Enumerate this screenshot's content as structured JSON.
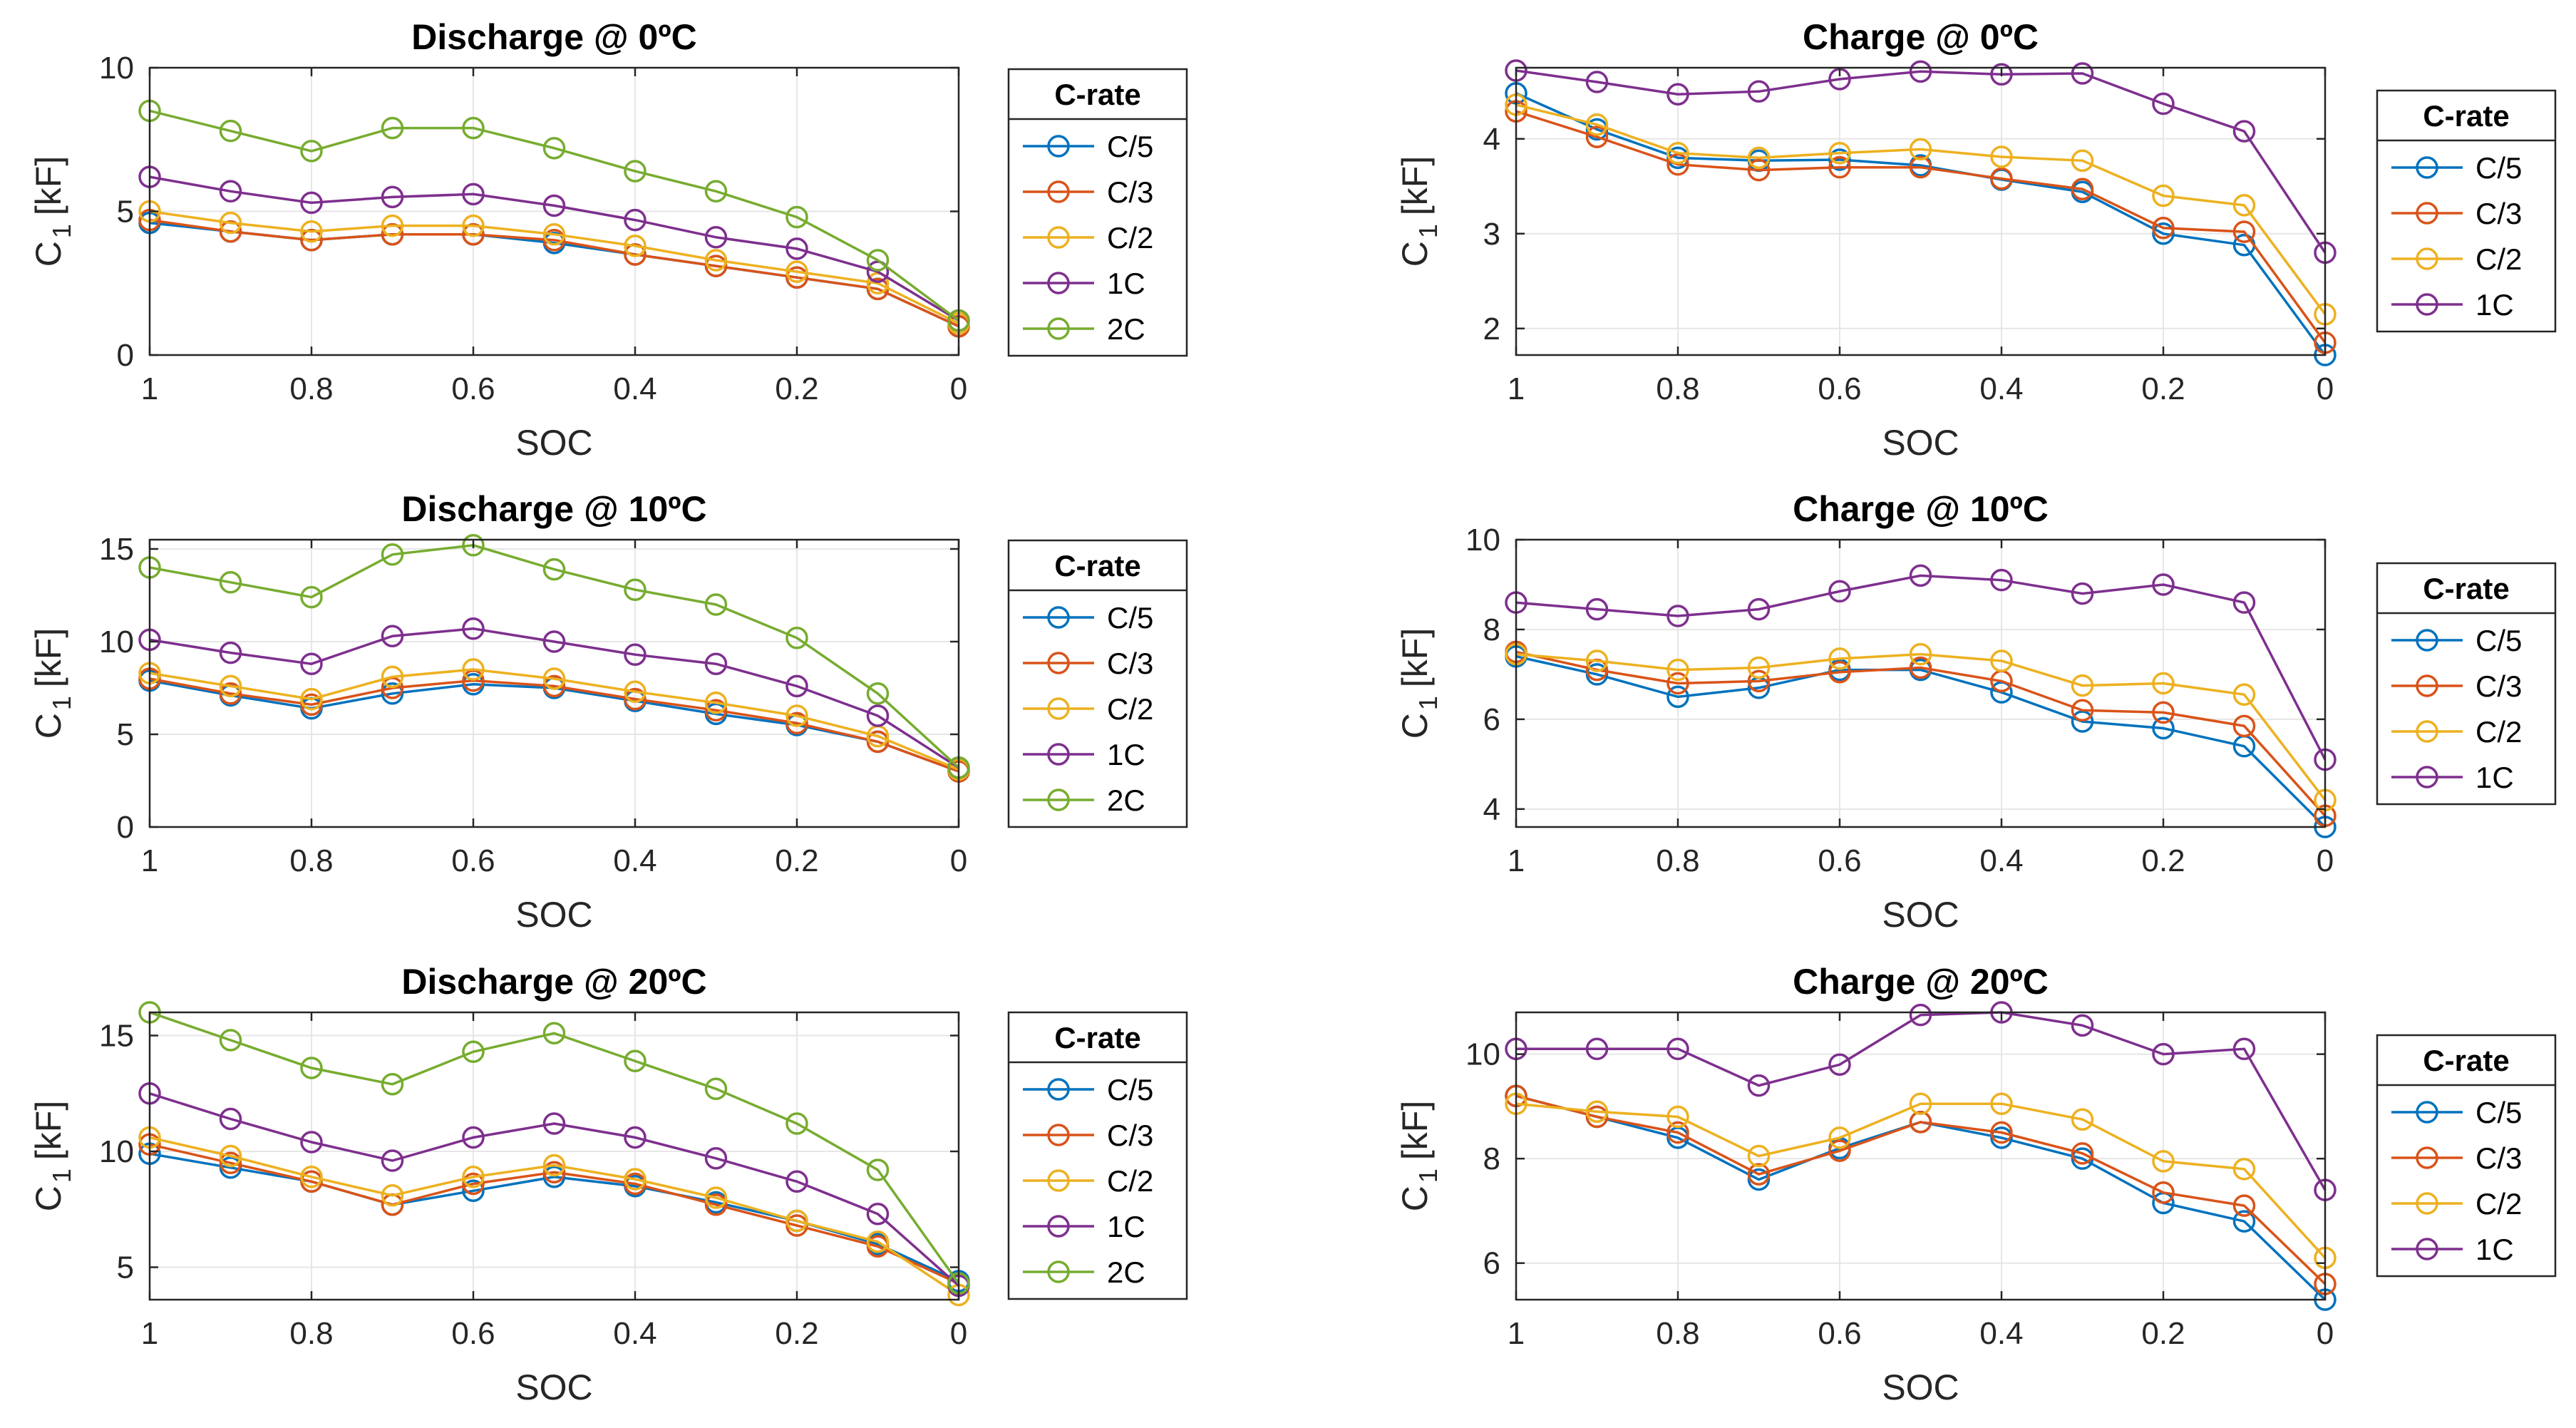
{
  "colors": {
    "C/5": "#0072BD",
    "C/3": "#D95319",
    "C/2": "#EDB120",
    "1C": "#7E2F8E",
    "2C": "#77AC30"
  },
  "chart_data": [
    {
      "type": "line",
      "title": "Discharge @ 0ºC",
      "xlabel": "SOC",
      "ylabel": "C 1 [kF]",
      "ylabel_main": "C",
      "ylabel_sub": "1",
      "ylabel_unit": "[kF]",
      "x": [
        1,
        0.9,
        0.8,
        0.7,
        0.6,
        0.5,
        0.4,
        0.3,
        0.2,
        0.1,
        0
      ],
      "xlim": [
        0,
        1
      ],
      "ylim": [
        0,
        10
      ],
      "xticks": [
        1,
        0.8,
        0.6,
        0.4,
        0.2,
        0
      ],
      "xtick_labels": [
        "1",
        "0.8",
        "0.6",
        "0.4",
        "0.2",
        "0"
      ],
      "yticks": [
        0,
        5,
        10
      ],
      "ytick_labels": [
        "0",
        "5",
        "10"
      ],
      "legend_title": "C-rate",
      "series": [
        {
          "name": "C/5",
          "values": [
            4.6,
            4.3,
            4.0,
            4.2,
            4.2,
            3.9,
            3.5,
            3.1,
            2.7,
            2.3,
            1.0
          ]
        },
        {
          "name": "C/3",
          "values": [
            4.7,
            4.3,
            4.0,
            4.2,
            4.2,
            4.0,
            3.5,
            3.1,
            2.7,
            2.3,
            1.0
          ]
        },
        {
          "name": "C/2",
          "values": [
            5.0,
            4.6,
            4.3,
            4.5,
            4.5,
            4.2,
            3.8,
            3.3,
            2.9,
            2.5,
            1.1
          ]
        },
        {
          "name": "1C",
          "values": [
            6.2,
            5.7,
            5.3,
            5.5,
            5.6,
            5.2,
            4.7,
            4.1,
            3.7,
            2.9,
            1.2
          ]
        },
        {
          "name": "2C",
          "values": [
            8.5,
            7.8,
            7.1,
            7.9,
            7.9,
            7.2,
            6.4,
            5.7,
            4.8,
            3.3,
            1.2
          ]
        }
      ]
    },
    {
      "type": "line",
      "title": "Charge @ 0ºC",
      "xlabel": "SOC",
      "ylabel": "C 1 [kF]",
      "ylabel_main": "C",
      "ylabel_sub": "1",
      "ylabel_unit": "[kF]",
      "x": [
        1,
        0.9,
        0.8,
        0.7,
        0.6,
        0.5,
        0.4,
        0.3,
        0.2,
        0.1,
        0
      ],
      "xlim": [
        0,
        1
      ],
      "ylim": [
        1.72,
        4.75
      ],
      "xticks": [
        1,
        0.8,
        0.6,
        0.4,
        0.2,
        0
      ],
      "xtick_labels": [
        "1",
        "0.8",
        "0.6",
        "0.4",
        "0.2",
        "0"
      ],
      "yticks": [
        2,
        3,
        4
      ],
      "ytick_labels": [
        "2",
        "3",
        "4"
      ],
      "legend_title": "C-rate",
      "series": [
        {
          "name": "C/5",
          "values": [
            4.48,
            4.1,
            3.8,
            3.77,
            3.78,
            3.72,
            3.57,
            3.44,
            3.0,
            2.88,
            1.72
          ]
        },
        {
          "name": "C/3",
          "values": [
            4.29,
            4.02,
            3.73,
            3.67,
            3.7,
            3.7,
            3.58,
            3.47,
            3.06,
            3.02,
            1.85
          ]
        },
        {
          "name": "C/2",
          "values": [
            4.36,
            4.15,
            3.85,
            3.8,
            3.85,
            3.89,
            3.81,
            3.77,
            3.4,
            3.3,
            2.15
          ]
        },
        {
          "name": "1C",
          "values": [
            4.72,
            4.6,
            4.47,
            4.5,
            4.63,
            4.71,
            4.68,
            4.69,
            4.37,
            4.08,
            2.8
          ]
        }
      ]
    },
    {
      "type": "line",
      "title": "Discharge @ 10ºC",
      "xlabel": "SOC",
      "ylabel": "C 1 [kF]",
      "ylabel_main": "C",
      "ylabel_sub": "1",
      "ylabel_unit": "[kF]",
      "x": [
        1,
        0.9,
        0.8,
        0.7,
        0.6,
        0.5,
        0.4,
        0.3,
        0.2,
        0.1,
        0
      ],
      "xlim": [
        0,
        1
      ],
      "ylim": [
        0,
        15.5
      ],
      "xticks": [
        1,
        0.8,
        0.6,
        0.4,
        0.2,
        0
      ],
      "xtick_labels": [
        "1",
        "0.8",
        "0.6",
        "0.4",
        "0.2",
        "0"
      ],
      "yticks": [
        0,
        5,
        10,
        15
      ],
      "ytick_labels": [
        "0",
        "5",
        "10",
        "15"
      ],
      "legend_title": "C-rate",
      "series": [
        {
          "name": "C/5",
          "values": [
            7.9,
            7.1,
            6.4,
            7.2,
            7.7,
            7.5,
            6.8,
            6.1,
            5.5,
            4.6,
            3.0
          ]
        },
        {
          "name": "C/3",
          "values": [
            8.0,
            7.2,
            6.6,
            7.5,
            7.9,
            7.6,
            6.9,
            6.3,
            5.6,
            4.6,
            3.0
          ]
        },
        {
          "name": "C/2",
          "values": [
            8.3,
            7.6,
            6.9,
            8.1,
            8.5,
            8.0,
            7.3,
            6.7,
            6.0,
            4.9,
            3.1
          ]
        },
        {
          "name": "1C",
          "values": [
            10.1,
            9.4,
            8.8,
            10.3,
            10.7,
            10.0,
            9.3,
            8.8,
            7.6,
            6.0,
            3.2
          ]
        },
        {
          "name": "2C",
          "values": [
            14.0,
            13.2,
            12.4,
            14.7,
            15.2,
            13.9,
            12.8,
            12.0,
            10.2,
            7.2,
            3.2
          ]
        }
      ]
    },
    {
      "type": "line",
      "title": "Charge @ 10ºC",
      "xlabel": "SOC",
      "ylabel": "C 1 [kF]",
      "ylabel_main": "C",
      "ylabel_sub": "1",
      "ylabel_unit": "[kF]",
      "x": [
        1,
        0.9,
        0.8,
        0.7,
        0.6,
        0.5,
        0.4,
        0.3,
        0.2,
        0.1,
        0
      ],
      "xlim": [
        0,
        1
      ],
      "ylim": [
        3.6,
        10
      ],
      "xticks": [
        1,
        0.8,
        0.6,
        0.4,
        0.2,
        0
      ],
      "xtick_labels": [
        "1",
        "0.8",
        "0.6",
        "0.4",
        "0.2",
        "0"
      ],
      "yticks": [
        4,
        6,
        8,
        10
      ],
      "ytick_labels": [
        "4",
        "6",
        "8",
        "10"
      ],
      "legend_title": "C-rate",
      "series": [
        {
          "name": "C/5",
          "values": [
            7.4,
            7.0,
            6.5,
            6.7,
            7.1,
            7.1,
            6.6,
            5.95,
            5.8,
            5.4,
            3.6
          ]
        },
        {
          "name": "C/3",
          "values": [
            7.5,
            7.1,
            6.8,
            6.85,
            7.05,
            7.15,
            6.85,
            6.2,
            6.15,
            5.85,
            3.85
          ]
        },
        {
          "name": "C/2",
          "values": [
            7.45,
            7.3,
            7.1,
            7.15,
            7.35,
            7.45,
            7.3,
            6.75,
            6.8,
            6.55,
            4.2
          ]
        },
        {
          "name": "1C",
          "values": [
            8.6,
            8.45,
            8.3,
            8.45,
            8.85,
            9.2,
            9.1,
            8.8,
            9.0,
            8.6,
            5.1
          ]
        }
      ]
    },
    {
      "type": "line",
      "title": "Discharge @ 20ºC",
      "xlabel": "SOC",
      "ylabel": "C 1 [kF]",
      "ylabel_main": "C",
      "ylabel_sub": "1",
      "ylabel_unit": "[kF]",
      "x": [
        1,
        0.9,
        0.8,
        0.7,
        0.6,
        0.5,
        0.4,
        0.3,
        0.2,
        0.1,
        0
      ],
      "xlim": [
        0,
        1
      ],
      "ylim": [
        3.6,
        16
      ],
      "xticks": [
        1,
        0.8,
        0.6,
        0.4,
        0.2,
        0
      ],
      "xtick_labels": [
        "1",
        "0.8",
        "0.6",
        "0.4",
        "0.2",
        "0"
      ],
      "yticks": [
        5,
        10,
        15
      ],
      "ytick_labels": [
        "5",
        "10",
        "15"
      ],
      "legend_title": "C-rate",
      "series": [
        {
          "name": "C/5",
          "values": [
            9.9,
            9.3,
            8.7,
            7.7,
            8.3,
            8.9,
            8.5,
            7.8,
            7.0,
            6.0,
            4.4
          ]
        },
        {
          "name": "C/3",
          "values": [
            10.3,
            9.5,
            8.7,
            7.7,
            8.6,
            9.1,
            8.6,
            7.7,
            6.8,
            5.9,
            4.3
          ]
        },
        {
          "name": "C/2",
          "values": [
            10.6,
            9.8,
            8.9,
            8.1,
            8.9,
            9.4,
            8.8,
            8.0,
            7.0,
            6.1,
            3.8
          ]
        },
        {
          "name": "1C",
          "values": [
            12.5,
            11.4,
            10.4,
            9.6,
            10.6,
            11.2,
            10.6,
            9.7,
            8.7,
            7.3,
            4.2
          ]
        },
        {
          "name": "2C",
          "values": [
            16.0,
            14.8,
            13.6,
            12.9,
            14.3,
            15.1,
            13.9,
            12.7,
            11.2,
            9.2,
            4.3
          ]
        }
      ]
    },
    {
      "type": "line",
      "title": "Charge @ 20ºC",
      "xlabel": "SOC",
      "ylabel": "C 1 [kF]",
      "ylabel_main": "C",
      "ylabel_sub": "1",
      "ylabel_unit": "[kF]",
      "x": [
        1,
        0.9,
        0.8,
        0.7,
        0.6,
        0.5,
        0.4,
        0.3,
        0.2,
        0.1,
        0
      ],
      "xlim": [
        0,
        1
      ],
      "ylim": [
        5.3,
        10.8
      ],
      "xticks": [
        1,
        0.8,
        0.6,
        0.4,
        0.2,
        0
      ],
      "xtick_labels": [
        "1",
        "0.8",
        "0.6",
        "0.4",
        "0.2",
        "0"
      ],
      "yticks": [
        6,
        8,
        10
      ],
      "ytick_labels": [
        "6",
        "8",
        "10"
      ],
      "legend_title": "C-rate",
      "series": [
        {
          "name": "C/5",
          "values": [
            9.2,
            8.8,
            8.4,
            7.6,
            8.2,
            8.7,
            8.4,
            8.0,
            7.15,
            6.8,
            5.3
          ]
        },
        {
          "name": "C/3",
          "values": [
            9.2,
            8.8,
            8.5,
            7.7,
            8.15,
            8.7,
            8.5,
            8.1,
            7.35,
            7.1,
            5.6
          ]
        },
        {
          "name": "C/2",
          "values": [
            9.05,
            8.9,
            8.8,
            8.05,
            8.4,
            9.05,
            9.05,
            8.75,
            7.95,
            7.8,
            6.1
          ]
        },
        {
          "name": "1C",
          "values": [
            10.1,
            10.1,
            10.1,
            9.4,
            9.8,
            10.75,
            10.8,
            10.55,
            10.0,
            10.1,
            7.4
          ]
        }
      ]
    }
  ]
}
